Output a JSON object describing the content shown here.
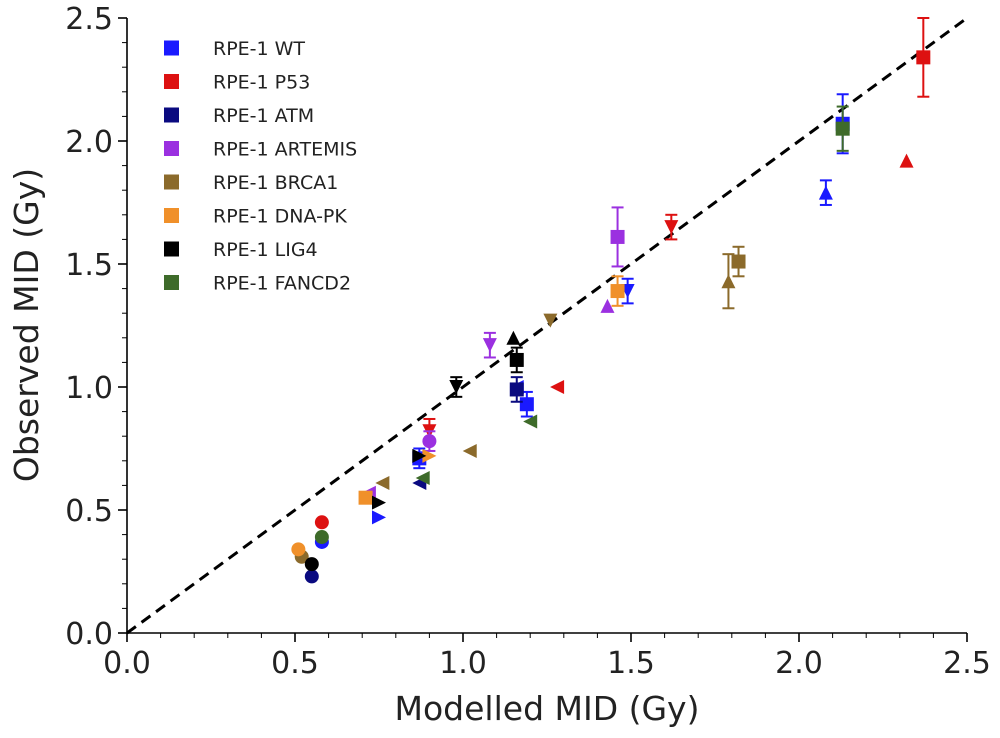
{
  "chart_data": {
    "type": "scatter",
    "title": "",
    "xlabel": "Modelled MID (Gy)",
    "ylabel": "Observed MID (Gy)",
    "xlim": [
      0.0,
      2.5
    ],
    "ylim": [
      0.0,
      2.5
    ],
    "x_ticks": [
      "0.0",
      "0.5",
      "1.0",
      "1.5",
      "2.0",
      "2.5"
    ],
    "y_ticks": [
      "0.0",
      "0.5",
      "1.0",
      "1.5",
      "2.0",
      "2.5"
    ],
    "grid": false,
    "legend_position": "top-left",
    "reference_line": {
      "style": "dashed",
      "color": "#000000",
      "from": [
        0,
        0
      ],
      "to": [
        2.5,
        2.5
      ]
    },
    "series": [
      {
        "name": "RPE-1 WT",
        "color": "#1a1aff",
        "points": [
          {
            "x": 0.58,
            "y": 0.37,
            "marker": "circle"
          },
          {
            "x": 0.75,
            "y": 0.47,
            "marker": "right"
          },
          {
            "x": 0.87,
            "y": 0.71,
            "marker": "square",
            "err": 0.04
          },
          {
            "x": 1.16,
            "y": 1.0,
            "marker": "left"
          },
          {
            "x": 1.19,
            "y": 0.93,
            "marker": "square",
            "err": 0.05
          },
          {
            "x": 1.49,
            "y": 1.39,
            "marker": "down",
            "err": 0.05
          },
          {
            "x": 2.08,
            "y": 1.79,
            "marker": "up",
            "err": 0.05
          },
          {
            "x": 2.13,
            "y": 2.07,
            "marker": "square",
            "err": 0.12
          }
        ]
      },
      {
        "name": "RPE-1 P53",
        "color": "#dd1111",
        "points": [
          {
            "x": 0.58,
            "y": 0.45,
            "marker": "circle"
          },
          {
            "x": 0.9,
            "y": 0.82,
            "marker": "down",
            "err": 0.05
          },
          {
            "x": 1.28,
            "y": 1.0,
            "marker": "left"
          },
          {
            "x": 1.62,
            "y": 1.65,
            "marker": "down",
            "err": 0.05
          },
          {
            "x": 2.32,
            "y": 1.92,
            "marker": "up"
          },
          {
            "x": 2.37,
            "y": 2.34,
            "marker": "square",
            "err": 0.16
          }
        ]
      },
      {
        "name": "RPE-1 ATM",
        "color": "#0a0a80",
        "points": [
          {
            "x": 0.55,
            "y": 0.23,
            "marker": "circle"
          },
          {
            "x": 0.87,
            "y": 0.61,
            "marker": "left"
          },
          {
            "x": 1.16,
            "y": 0.99,
            "marker": "square",
            "err": 0.05
          }
        ]
      },
      {
        "name": "RPE-1 ARTEMIS",
        "color": "#9b30e0",
        "points": [
          {
            "x": 0.72,
            "y": 0.57,
            "marker": "left"
          },
          {
            "x": 0.9,
            "y": 0.78,
            "marker": "circle",
            "err": 0.04
          },
          {
            "x": 1.08,
            "y": 1.17,
            "marker": "down",
            "err": 0.05
          },
          {
            "x": 1.43,
            "y": 1.33,
            "marker": "up"
          },
          {
            "x": 1.46,
            "y": 1.61,
            "marker": "square",
            "err": 0.12
          }
        ]
      },
      {
        "name": "RPE-1 BRCA1",
        "color": "#8b6a2b",
        "points": [
          {
            "x": 0.52,
            "y": 0.31,
            "marker": "circle"
          },
          {
            "x": 0.76,
            "y": 0.61,
            "marker": "left"
          },
          {
            "x": 1.02,
            "y": 0.74,
            "marker": "left"
          },
          {
            "x": 1.26,
            "y": 1.27,
            "marker": "down"
          },
          {
            "x": 1.79,
            "y": 1.43,
            "marker": "up",
            "err": 0.11
          },
          {
            "x": 1.82,
            "y": 1.51,
            "marker": "square",
            "err": 0.06
          }
        ]
      },
      {
        "name": "RPE-1 DNA-PK",
        "color": "#f0902a",
        "points": [
          {
            "x": 0.51,
            "y": 0.34,
            "marker": "circle"
          },
          {
            "x": 0.71,
            "y": 0.55,
            "marker": "square"
          },
          {
            "x": 0.9,
            "y": 0.72,
            "marker": "right"
          },
          {
            "x": 1.46,
            "y": 1.39,
            "marker": "square",
            "err": 0.06
          }
        ]
      },
      {
        "name": "RPE-1 LIG4",
        "color": "#000000",
        "points": [
          {
            "x": 0.55,
            "y": 0.28,
            "marker": "circle"
          },
          {
            "x": 0.75,
            "y": 0.53,
            "marker": "right"
          },
          {
            "x": 0.87,
            "y": 0.72,
            "marker": "right"
          },
          {
            "x": 0.98,
            "y": 1.0,
            "marker": "down",
            "err": 0.04
          },
          {
            "x": 1.15,
            "y": 1.2,
            "marker": "up"
          },
          {
            "x": 1.16,
            "y": 1.11,
            "marker": "square",
            "err": 0.05
          }
        ]
      },
      {
        "name": "RPE-1 FANCD2",
        "color": "#3e6b2a",
        "points": [
          {
            "x": 0.58,
            "y": 0.39,
            "marker": "circle"
          },
          {
            "x": 0.88,
            "y": 0.63,
            "marker": "left"
          },
          {
            "x": 1.2,
            "y": 0.86,
            "marker": "left"
          },
          {
            "x": 2.13,
            "y": 2.05,
            "marker": "square",
            "err": 0.09
          }
        ]
      }
    ]
  }
}
